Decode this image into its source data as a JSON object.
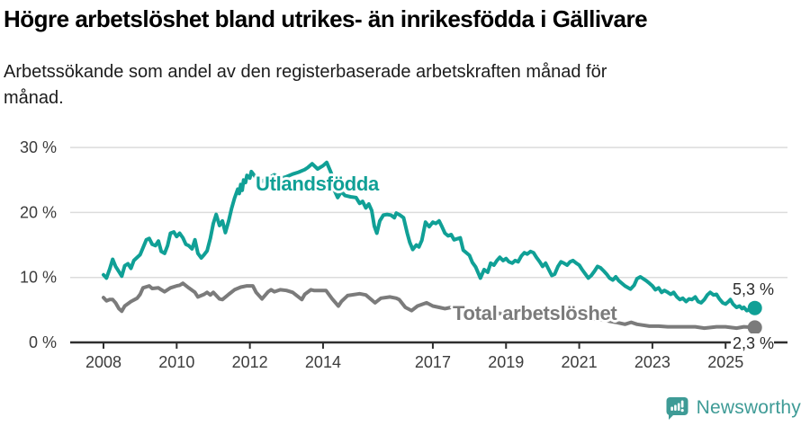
{
  "chart_data": {
    "type": "line",
    "title": "Högre arbetslöshet bland utrikes- än inrikesfödda i Gällivare",
    "subtitle": "Arbetssökande som andel av den registerbaserade arbetskraften månad för månad.",
    "subtitle_lines": [
      "Arbetssökande som andel av den registerbaserade arbetskraften månad för",
      "månad."
    ],
    "unit": "%",
    "grid": "horizontal",
    "legend_position": "inline-labels",
    "x_ticks": [
      2008,
      2010,
      2012,
      2014,
      2017,
      2019,
      2021,
      2023,
      2025
    ],
    "x_tick_labels": [
      "2008",
      "2010",
      "2012",
      "2014",
      "2017",
      "2019",
      "2021",
      "2023",
      "2025"
    ],
    "y_ticks": [
      0,
      10,
      20,
      30
    ],
    "y_tick_labels": [
      "0 %",
      "10 %",
      "20 %",
      "30 %"
    ],
    "xlim": [
      2007.35,
      2026.7
    ],
    "ylim": [
      0,
      31
    ],
    "series": [
      {
        "name": "Utlandsfödda",
        "color": "#10a096",
        "end_label": "5,3 %",
        "end_value": 5.3,
        "points": [
          [
            2008.0,
            10.4
          ],
          [
            2008.08,
            9.9
          ],
          [
            2008.17,
            11.3
          ],
          [
            2008.25,
            12.8
          ],
          [
            2008.33,
            11.7
          ],
          [
            2008.42,
            10.9
          ],
          [
            2008.5,
            10.2
          ],
          [
            2008.58,
            11.8
          ],
          [
            2008.67,
            12.1
          ],
          [
            2008.75,
            11.4
          ],
          [
            2008.83,
            12.6
          ],
          [
            2009.0,
            13.5
          ],
          [
            2009.17,
            15.8
          ],
          [
            2009.25,
            16.0
          ],
          [
            2009.33,
            15.1
          ],
          [
            2009.42,
            14.9
          ],
          [
            2009.5,
            15.6
          ],
          [
            2009.58,
            14.0
          ],
          [
            2009.67,
            13.7
          ],
          [
            2009.75,
            14.9
          ],
          [
            2009.83,
            16.8
          ],
          [
            2009.92,
            17.0
          ],
          [
            2010.0,
            16.3
          ],
          [
            2010.08,
            16.8
          ],
          [
            2010.17,
            16.1
          ],
          [
            2010.25,
            15.1
          ],
          [
            2010.33,
            14.9
          ],
          [
            2010.42,
            14.4
          ],
          [
            2010.5,
            15.8
          ],
          [
            2010.58,
            13.7
          ],
          [
            2010.67,
            13.0
          ],
          [
            2010.75,
            13.5
          ],
          [
            2010.83,
            14.1
          ],
          [
            2010.92,
            16.0
          ],
          [
            2011.0,
            18.3
          ],
          [
            2011.08,
            19.7
          ],
          [
            2011.17,
            18.0
          ],
          [
            2011.25,
            18.7
          ],
          [
            2011.33,
            16.9
          ],
          [
            2011.42,
            18.7
          ],
          [
            2011.5,
            20.6
          ],
          [
            2011.58,
            22.2
          ],
          [
            2011.67,
            23.6
          ],
          [
            2011.71,
            22.9
          ],
          [
            2011.75,
            24.3
          ],
          [
            2011.79,
            23.4
          ],
          [
            2011.83,
            25.0
          ],
          [
            2011.88,
            24.6
          ],
          [
            2011.92,
            25.7
          ],
          [
            2012.0,
            25.3
          ],
          [
            2012.04,
            26.3
          ],
          [
            2012.08,
            26.0
          ],
          [
            2012.17,
            25.3
          ],
          [
            2012.33,
            24.8
          ],
          [
            2012.5,
            25.3
          ],
          [
            2012.67,
            25.8
          ],
          [
            2012.83,
            25.2
          ],
          [
            2013.0,
            25.5
          ],
          [
            2013.17,
            25.9
          ],
          [
            2013.33,
            26.2
          ],
          [
            2013.5,
            26.6
          ],
          [
            2013.58,
            26.9
          ],
          [
            2013.7,
            27.5
          ],
          [
            2013.85,
            26.7
          ],
          [
            2014.0,
            27.2
          ],
          [
            2014.1,
            27.7
          ],
          [
            2014.22,
            26.1
          ],
          [
            2014.3,
            23.5
          ],
          [
            2014.4,
            22.3
          ],
          [
            2014.5,
            23.2
          ],
          [
            2014.6,
            22.6
          ],
          [
            2014.75,
            22.4
          ],
          [
            2014.9,
            22.3
          ],
          [
            2015.0,
            21.4
          ],
          [
            2015.08,
            21.7
          ],
          [
            2015.17,
            20.7
          ],
          [
            2015.25,
            21.3
          ],
          [
            2015.33,
            20.3
          ],
          [
            2015.4,
            17.9
          ],
          [
            2015.47,
            16.8
          ],
          [
            2015.55,
            18.7
          ],
          [
            2015.65,
            19.6
          ],
          [
            2015.75,
            19.7
          ],
          [
            2015.85,
            19.6
          ],
          [
            2015.95,
            19.2
          ],
          [
            2016.0,
            19.9
          ],
          [
            2016.1,
            19.6
          ],
          [
            2016.2,
            19.2
          ],
          [
            2016.3,
            16.8
          ],
          [
            2016.37,
            15.4
          ],
          [
            2016.45,
            14.3
          ],
          [
            2016.55,
            15.0
          ],
          [
            2016.62,
            14.7
          ],
          [
            2016.7,
            15.7
          ],
          [
            2016.8,
            18.5
          ],
          [
            2016.9,
            17.8
          ],
          [
            2017.0,
            18.5
          ],
          [
            2017.08,
            18.3
          ],
          [
            2017.17,
            18.7
          ],
          [
            2017.25,
            17.8
          ],
          [
            2017.33,
            16.8
          ],
          [
            2017.42,
            16.4
          ],
          [
            2017.5,
            16.6
          ],
          [
            2017.58,
            15.8
          ],
          [
            2017.75,
            16.1
          ],
          [
            2017.83,
            14.2
          ],
          [
            2018.0,
            13.4
          ],
          [
            2018.08,
            12.3
          ],
          [
            2018.17,
            11.6
          ],
          [
            2018.3,
            9.9
          ],
          [
            2018.4,
            11.2
          ],
          [
            2018.5,
            10.8
          ],
          [
            2018.58,
            12.2
          ],
          [
            2018.67,
            11.9
          ],
          [
            2018.75,
            12.6
          ],
          [
            2018.83,
            13.1
          ],
          [
            2018.92,
            12.6
          ],
          [
            2019.0,
            12.9
          ],
          [
            2019.08,
            12.4
          ],
          [
            2019.17,
            12.2
          ],
          [
            2019.25,
            12.6
          ],
          [
            2019.33,
            12.4
          ],
          [
            2019.42,
            13.3
          ],
          [
            2019.5,
            13.8
          ],
          [
            2019.58,
            13.6
          ],
          [
            2019.67,
            14.0
          ],
          [
            2019.75,
            13.8
          ],
          [
            2019.83,
            13.1
          ],
          [
            2019.92,
            12.4
          ],
          [
            2020.0,
            11.7
          ],
          [
            2020.08,
            12.2
          ],
          [
            2020.17,
            11.2
          ],
          [
            2020.25,
            10.3
          ],
          [
            2020.33,
            10.5
          ],
          [
            2020.42,
            11.7
          ],
          [
            2020.5,
            12.4
          ],
          [
            2020.58,
            12.2
          ],
          [
            2020.67,
            11.9
          ],
          [
            2020.75,
            12.4
          ],
          [
            2020.83,
            12.6
          ],
          [
            2020.92,
            12.2
          ],
          [
            2021.0,
            11.9
          ],
          [
            2021.08,
            11.2
          ],
          [
            2021.17,
            10.5
          ],
          [
            2021.25,
            9.9
          ],
          [
            2021.33,
            10.3
          ],
          [
            2021.42,
            11.0
          ],
          [
            2021.5,
            11.7
          ],
          [
            2021.58,
            11.5
          ],
          [
            2021.67,
            11.0
          ],
          [
            2021.75,
            10.5
          ],
          [
            2021.83,
            9.9
          ],
          [
            2021.92,
            9.6
          ],
          [
            2022.0,
            10.1
          ],
          [
            2022.08,
            9.5
          ],
          [
            2022.25,
            8.7
          ],
          [
            2022.4,
            8.2
          ],
          [
            2022.5,
            8.8
          ],
          [
            2022.58,
            9.8
          ],
          [
            2022.67,
            10.1
          ],
          [
            2022.83,
            9.5
          ],
          [
            2022.92,
            9.1
          ],
          [
            2023.0,
            8.7
          ],
          [
            2023.08,
            8.1
          ],
          [
            2023.17,
            8.4
          ],
          [
            2023.25,
            7.7
          ],
          [
            2023.33,
            8.0
          ],
          [
            2023.42,
            7.7
          ],
          [
            2023.5,
            7.4
          ],
          [
            2023.58,
            7.7
          ],
          [
            2023.67,
            7.0
          ],
          [
            2023.75,
            6.6
          ],
          [
            2023.83,
            6.8
          ],
          [
            2023.92,
            6.3
          ],
          [
            2024.0,
            6.7
          ],
          [
            2024.08,
            6.6
          ],
          [
            2024.17,
            7.0
          ],
          [
            2024.25,
            6.3
          ],
          [
            2024.33,
            6.1
          ],
          [
            2024.42,
            6.6
          ],
          [
            2024.5,
            7.3
          ],
          [
            2024.58,
            7.7
          ],
          [
            2024.67,
            7.3
          ],
          [
            2024.75,
            7.4
          ],
          [
            2024.83,
            6.7
          ],
          [
            2024.92,
            6.1
          ],
          [
            2025.0,
            5.9
          ],
          [
            2025.08,
            6.3
          ],
          [
            2025.13,
            6.6
          ],
          [
            2025.2,
            5.9
          ],
          [
            2025.3,
            5.4
          ],
          [
            2025.38,
            5.6
          ],
          [
            2025.45,
            5.2
          ],
          [
            2025.5,
            5.4
          ],
          [
            2025.58,
            4.9
          ],
          [
            2025.67,
            5.1
          ],
          [
            2025.8,
            5.3
          ]
        ]
      },
      {
        "name": "Total arbetslöshet",
        "color": "#7b7b7b",
        "end_label": "2,3 %",
        "end_value": 2.3,
        "points": [
          [
            2008.0,
            6.9
          ],
          [
            2008.08,
            6.4
          ],
          [
            2008.17,
            6.6
          ],
          [
            2008.25,
            6.6
          ],
          [
            2008.33,
            6.1
          ],
          [
            2008.42,
            5.2
          ],
          [
            2008.5,
            4.8
          ],
          [
            2008.58,
            5.6
          ],
          [
            2008.75,
            6.3
          ],
          [
            2008.92,
            6.8
          ],
          [
            2009.0,
            7.4
          ],
          [
            2009.08,
            8.4
          ],
          [
            2009.25,
            8.7
          ],
          [
            2009.33,
            8.3
          ],
          [
            2009.5,
            8.4
          ],
          [
            2009.58,
            8.1
          ],
          [
            2009.67,
            7.8
          ],
          [
            2009.83,
            8.4
          ],
          [
            2010.0,
            8.7
          ],
          [
            2010.08,
            8.8
          ],
          [
            2010.17,
            9.1
          ],
          [
            2010.33,
            8.4
          ],
          [
            2010.5,
            7.7
          ],
          [
            2010.58,
            7.0
          ],
          [
            2010.75,
            7.4
          ],
          [
            2010.83,
            7.7
          ],
          [
            2010.92,
            7.3
          ],
          [
            2011.0,
            7.7
          ],
          [
            2011.17,
            6.7
          ],
          [
            2011.25,
            6.6
          ],
          [
            2011.42,
            7.4
          ],
          [
            2011.58,
            8.1
          ],
          [
            2011.75,
            8.5
          ],
          [
            2011.92,
            8.7
          ],
          [
            2012.08,
            8.7
          ],
          [
            2012.17,
            7.7
          ],
          [
            2012.33,
            6.7
          ],
          [
            2012.5,
            7.8
          ],
          [
            2012.58,
            8.1
          ],
          [
            2012.67,
            7.8
          ],
          [
            2012.83,
            8.1
          ],
          [
            2013.0,
            8.0
          ],
          [
            2013.17,
            7.7
          ],
          [
            2013.33,
            7.0
          ],
          [
            2013.42,
            6.6
          ],
          [
            2013.5,
            7.4
          ],
          [
            2013.67,
            8.1
          ],
          [
            2013.75,
            8.0
          ],
          [
            2013.92,
            8.0
          ],
          [
            2014.08,
            8.0
          ],
          [
            2014.25,
            6.7
          ],
          [
            2014.42,
            5.6
          ],
          [
            2014.5,
            6.3
          ],
          [
            2014.67,
            7.2
          ],
          [
            2015.0,
            7.5
          ],
          [
            2015.17,
            7.3
          ],
          [
            2015.42,
            6.1
          ],
          [
            2015.58,
            6.8
          ],
          [
            2015.83,
            7.0
          ],
          [
            2016.0,
            6.8
          ],
          [
            2016.08,
            6.6
          ],
          [
            2016.25,
            5.4
          ],
          [
            2016.42,
            4.9
          ],
          [
            2016.58,
            5.6
          ],
          [
            2016.83,
            6.1
          ],
          [
            2017.0,
            5.6
          ],
          [
            2017.17,
            5.4
          ],
          [
            2017.33,
            5.2
          ],
          [
            2017.5,
            5.4
          ],
          [
            2018.0,
            5.0
          ],
          [
            2018.5,
            4.6
          ],
          [
            2019.0,
            4.4
          ],
          [
            2019.5,
            4.2
          ],
          [
            2020.0,
            4.3
          ],
          [
            2020.5,
            4.4
          ],
          [
            2021.0,
            4.0
          ],
          [
            2021.5,
            3.6
          ],
          [
            2022.0,
            3.1
          ],
          [
            2022.25,
            2.8
          ],
          [
            2022.42,
            3.1
          ],
          [
            2022.58,
            2.8
          ],
          [
            2022.92,
            2.5
          ],
          [
            2023.17,
            2.5
          ],
          [
            2023.42,
            2.4
          ],
          [
            2023.67,
            2.4
          ],
          [
            2023.92,
            2.4
          ],
          [
            2024.17,
            2.4
          ],
          [
            2024.42,
            2.2
          ],
          [
            2024.75,
            2.4
          ],
          [
            2025.0,
            2.4
          ],
          [
            2025.3,
            2.2
          ],
          [
            2025.5,
            2.4
          ],
          [
            2025.8,
            2.3
          ]
        ]
      }
    ]
  },
  "footer": {
    "brand": "Newsworthy"
  },
  "colors": {
    "accent_teal": "#10a096",
    "series_gray": "#7b7b7b",
    "grid": "#dcdcdc",
    "axis": "#2f2f2f",
    "tick_text": "#3c3c3c",
    "logo_teal": "#3e9b96"
  }
}
